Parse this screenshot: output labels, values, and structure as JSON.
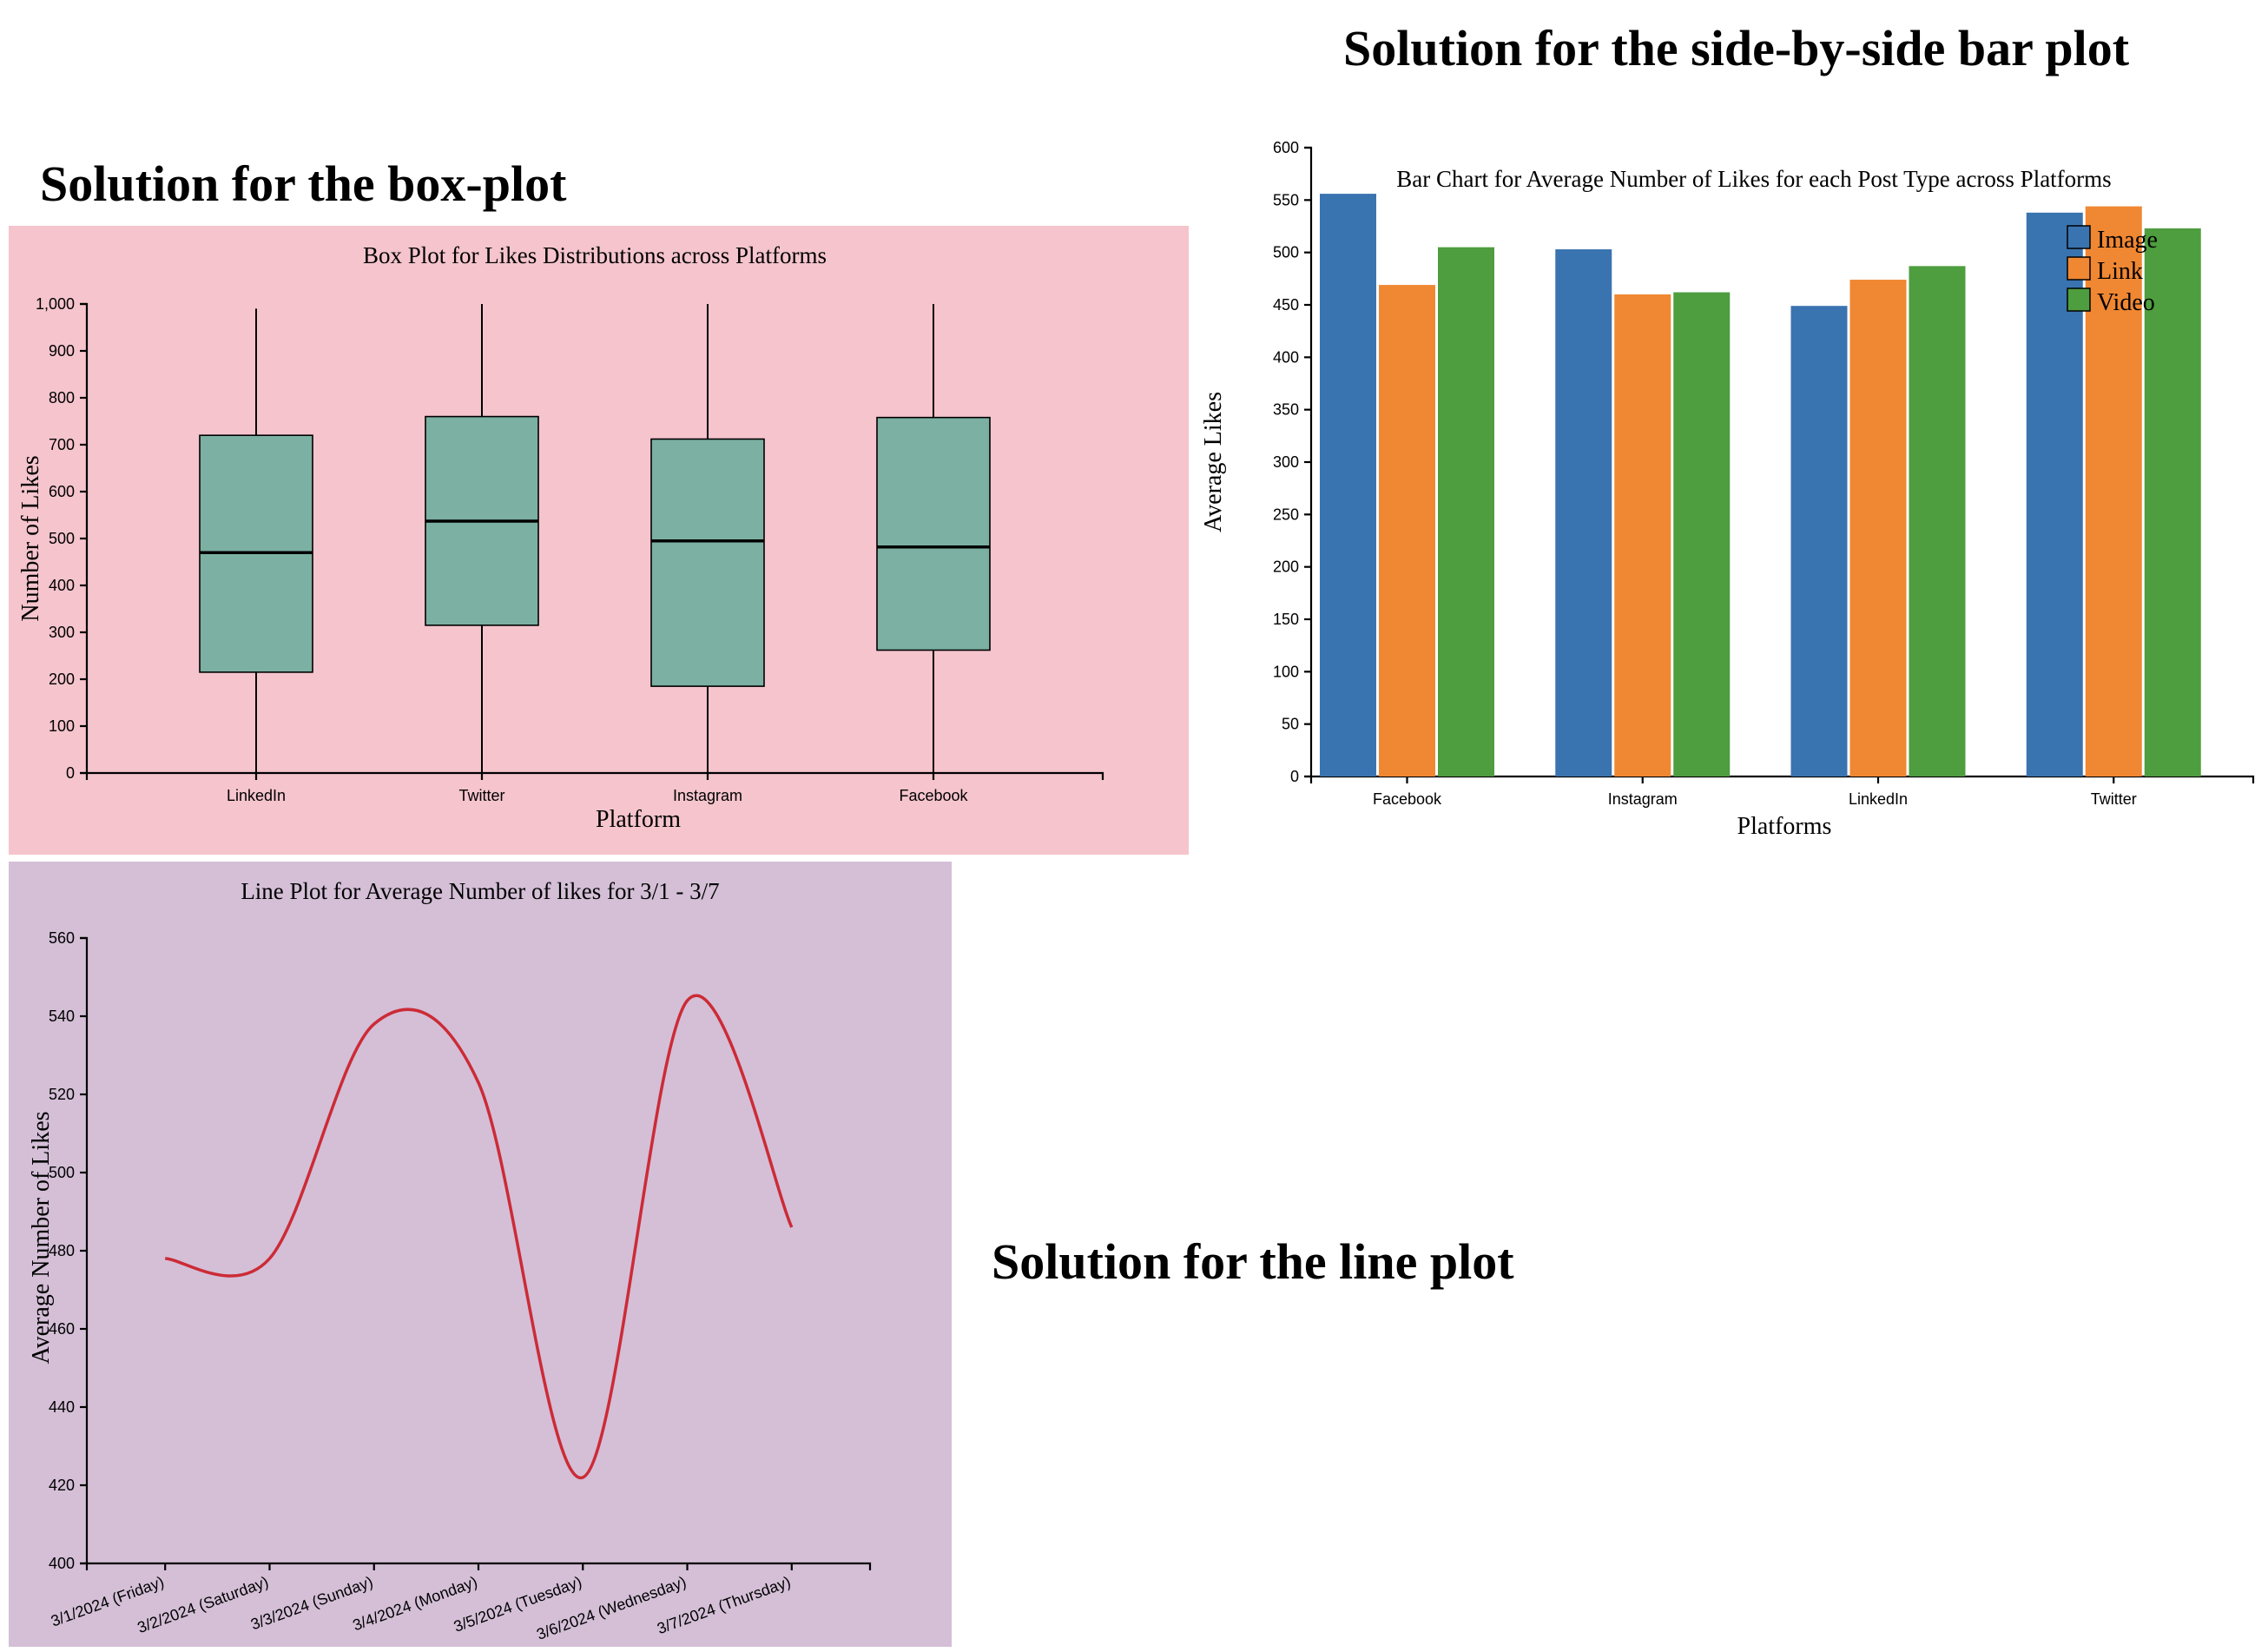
{
  "headings": {
    "box": "Solution for the box-plot",
    "bar": "Solution for the side-by-side bar plot",
    "line": "Solution for the line plot"
  },
  "colors": {
    "box_panel_bg": "#f5c4cc",
    "line_panel_bg": "#d4bfd7",
    "box_fill": "#7bb0a3",
    "line_stroke": "#cc2b36",
    "bar_image": "#3a74b0",
    "bar_link": "#f08732",
    "bar_video": "#4e9d3e"
  },
  "chart_data": [
    {
      "type": "box",
      "title": "Box Plot for Likes Distributions across Platforms",
      "xlabel": "Platform",
      "ylabel": "Number of Likes",
      "ylim": [
        0,
        1000
      ],
      "yticks": [
        "0",
        "100",
        "200",
        "300",
        "400",
        "500",
        "600",
        "700",
        "800",
        "900",
        "1,000"
      ],
      "categories": [
        "LinkedIn",
        "Twitter",
        "Instagram",
        "Facebook"
      ],
      "boxes": [
        {
          "min": 0,
          "q1": 215,
          "median": 470,
          "q3": 720,
          "max": 990
        },
        {
          "min": 0,
          "q1": 315,
          "median": 537,
          "q3": 760,
          "max": 1000
        },
        {
          "min": 0,
          "q1": 185,
          "median": 495,
          "q3": 712,
          "max": 1000
        },
        {
          "min": 0,
          "q1": 262,
          "median": 482,
          "q3": 758,
          "max": 1000
        }
      ],
      "grid": false
    },
    {
      "type": "bar",
      "title": "Bar Chart for Average Number of Likes for each Post Type across Platforms",
      "xlabel": "Platforms",
      "ylabel": "Average Likes",
      "ylim": [
        0,
        600
      ],
      "yticks": [
        "0",
        "50",
        "100",
        "150",
        "200",
        "250",
        "300",
        "350",
        "400",
        "450",
        "500",
        "550",
        "600"
      ],
      "categories": [
        "Facebook",
        "Instagram",
        "LinkedIn",
        "Twitter"
      ],
      "series": [
        {
          "name": "Image",
          "values": [
            556,
            503,
            449,
            538
          ]
        },
        {
          "name": "Link",
          "values": [
            469,
            460,
            474,
            544
          ]
        },
        {
          "name": "Video",
          "values": [
            505,
            462,
            487,
            523
          ]
        }
      ],
      "legend": "top-right",
      "grid": false
    },
    {
      "type": "line",
      "title": "Line Plot for Average Number of likes for 3/1 - 3/7",
      "xlabel": "",
      "ylabel": "Average Number of Likes",
      "ylim": [
        400,
        560
      ],
      "yticks": [
        "400",
        "420",
        "440",
        "460",
        "480",
        "500",
        "520",
        "540",
        "560"
      ],
      "x": [
        "3/1/2024 (Friday)",
        "3/2/2024 (Saturday)",
        "3/3/2024 (Sunday)",
        "3/4/2024 (Monday)",
        "3/5/2024 (Tuesday)",
        "3/6/2024 (Wednesday)",
        "3/7/2024 (Thursday)"
      ],
      "values": [
        478,
        478,
        538,
        523,
        422,
        544,
        486
      ],
      "grid": false
    }
  ]
}
